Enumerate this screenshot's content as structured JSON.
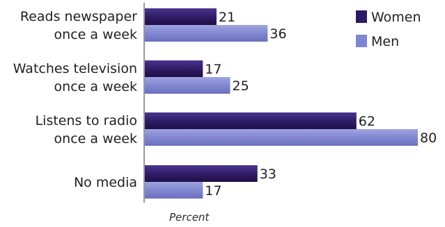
{
  "chart_data": {
    "type": "bar",
    "orientation": "horizontal",
    "categories": [
      [
        "Reads newspaper",
        "once a week"
      ],
      [
        "Watches television",
        "once a week"
      ],
      [
        "Listens to radio",
        "once a week"
      ],
      [
        "No media"
      ]
    ],
    "series": [
      {
        "name": "Women",
        "values": [
          21,
          17,
          62,
          33
        ],
        "color": "#2e1a63"
      },
      {
        "name": "Men",
        "values": [
          36,
          25,
          80,
          17
        ],
        "color": "#7f85cf"
      }
    ],
    "xlabel": "Percent",
    "xlim": [
      0,
      80
    ],
    "grid": false,
    "legend_position": "top-right"
  }
}
